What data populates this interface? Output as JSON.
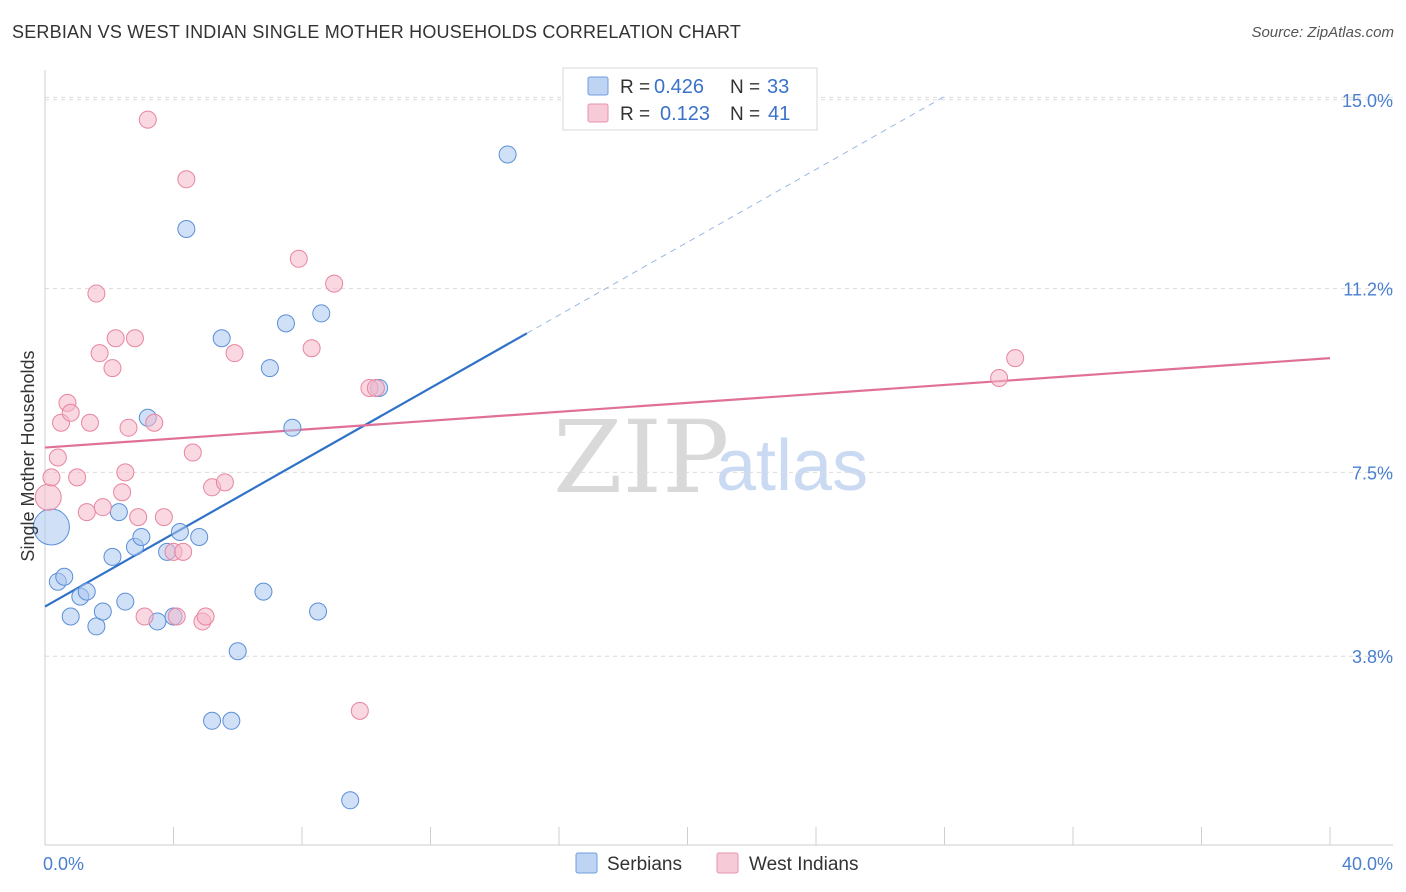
{
  "title": "SERBIAN VS WEST INDIAN SINGLE MOTHER HOUSEHOLDS CORRELATION CHART",
  "source": "Source: ZipAtlas.com",
  "watermark": {
    "zip": "ZIP",
    "atlas": "atlas"
  },
  "legend": {
    "r_label": "R =",
    "n_label": "N =",
    "serbians": {
      "r": "0.426",
      "n": "33",
      "color": "#a9c6ee"
    },
    "west_indians": {
      "r": "0.123",
      "n": "41",
      "color": "#f4b8cb"
    }
  },
  "chart_data": {
    "type": "scatter",
    "title": "SERBIAN VS WEST INDIAN SINGLE MOTHER HOUSEHOLDS CORRELATION CHART",
    "xlabel": "",
    "ylabel": "Single Mother Households",
    "xlim": [
      0,
      40
    ],
    "ylim": [
      0,
      15.6
    ],
    "x_tick_labels": {
      "left": "0.0%",
      "right": "40.0%"
    },
    "y_ticks": [
      3.8,
      7.5,
      11.2,
      15.0
    ],
    "y_tick_labels": [
      "3.8%",
      "7.5%",
      "11.2%",
      "15.0%"
    ],
    "grid": true,
    "series": [
      {
        "name": "Serbians",
        "color": "#5b8fd8",
        "fill": "#a9c6ee",
        "line_color": "#2f72c8",
        "trend": {
          "x0": 0,
          "y0": 4.8,
          "x1": 15,
          "y1": 10.3,
          "dashed_to_x": 28
        },
        "points": [
          [
            0.2,
            6.4
          ],
          [
            0.4,
            5.3
          ],
          [
            0.6,
            5.4
          ],
          [
            0.8,
            4.6
          ],
          [
            1.1,
            5.0
          ],
          [
            1.3,
            5.1
          ],
          [
            1.6,
            4.4
          ],
          [
            1.8,
            4.7
          ],
          [
            2.1,
            5.8
          ],
          [
            2.3,
            6.7
          ],
          [
            2.5,
            4.9
          ],
          [
            2.8,
            6.0
          ],
          [
            3.0,
            6.2
          ],
          [
            3.2,
            8.6
          ],
          [
            3.5,
            4.5
          ],
          [
            3.8,
            5.9
          ],
          [
            4.0,
            4.6
          ],
          [
            4.2,
            6.3
          ],
          [
            4.4,
            12.4
          ],
          [
            4.8,
            6.2
          ],
          [
            5.2,
            2.5
          ],
          [
            5.5,
            10.2
          ],
          [
            5.8,
            2.5
          ],
          [
            6.0,
            3.9
          ],
          [
            6.8,
            5.1
          ],
          [
            7.0,
            9.6
          ],
          [
            7.5,
            10.5
          ],
          [
            7.7,
            8.4
          ],
          [
            8.5,
            4.7
          ],
          [
            8.6,
            10.7
          ],
          [
            9.5,
            0.9
          ],
          [
            10.4,
            9.2
          ],
          [
            14.4,
            13.9
          ]
        ]
      },
      {
        "name": "West Indians",
        "color": "#e8859f",
        "fill": "#f4b8cb",
        "line_color": "#e07098",
        "trend": {
          "x0": 0,
          "y0": 8.0,
          "x1": 40,
          "y1": 9.8
        },
        "points": [
          [
            0.1,
            7.0
          ],
          [
            0.2,
            7.4
          ],
          [
            0.4,
            7.8
          ],
          [
            0.5,
            8.5
          ],
          [
            0.7,
            8.9
          ],
          [
            0.8,
            8.7
          ],
          [
            1.0,
            7.4
          ],
          [
            1.3,
            6.7
          ],
          [
            1.4,
            8.5
          ],
          [
            1.6,
            11.1
          ],
          [
            1.7,
            9.9
          ],
          [
            1.8,
            6.8
          ],
          [
            2.1,
            9.6
          ],
          [
            2.2,
            10.2
          ],
          [
            2.4,
            7.1
          ],
          [
            2.5,
            7.5
          ],
          [
            2.6,
            8.4
          ],
          [
            2.8,
            10.2
          ],
          [
            2.9,
            6.6
          ],
          [
            3.1,
            4.6
          ],
          [
            3.2,
            14.6
          ],
          [
            3.4,
            8.5
          ],
          [
            3.7,
            6.6
          ],
          [
            4.0,
            5.9
          ],
          [
            4.1,
            4.6
          ],
          [
            4.3,
            5.9
          ],
          [
            4.4,
            13.4
          ],
          [
            4.6,
            7.9
          ],
          [
            4.9,
            4.5
          ],
          [
            5.0,
            4.6
          ],
          [
            5.2,
            7.2
          ],
          [
            5.6,
            7.3
          ],
          [
            5.9,
            9.9
          ],
          [
            7.9,
            11.8
          ],
          [
            8.3,
            10.0
          ],
          [
            9.0,
            11.3
          ],
          [
            9.8,
            2.7
          ],
          [
            10.1,
            9.2
          ],
          [
            10.3,
            9.2
          ],
          [
            29.7,
            9.4
          ],
          [
            30.2,
            9.8
          ]
        ]
      }
    ]
  }
}
